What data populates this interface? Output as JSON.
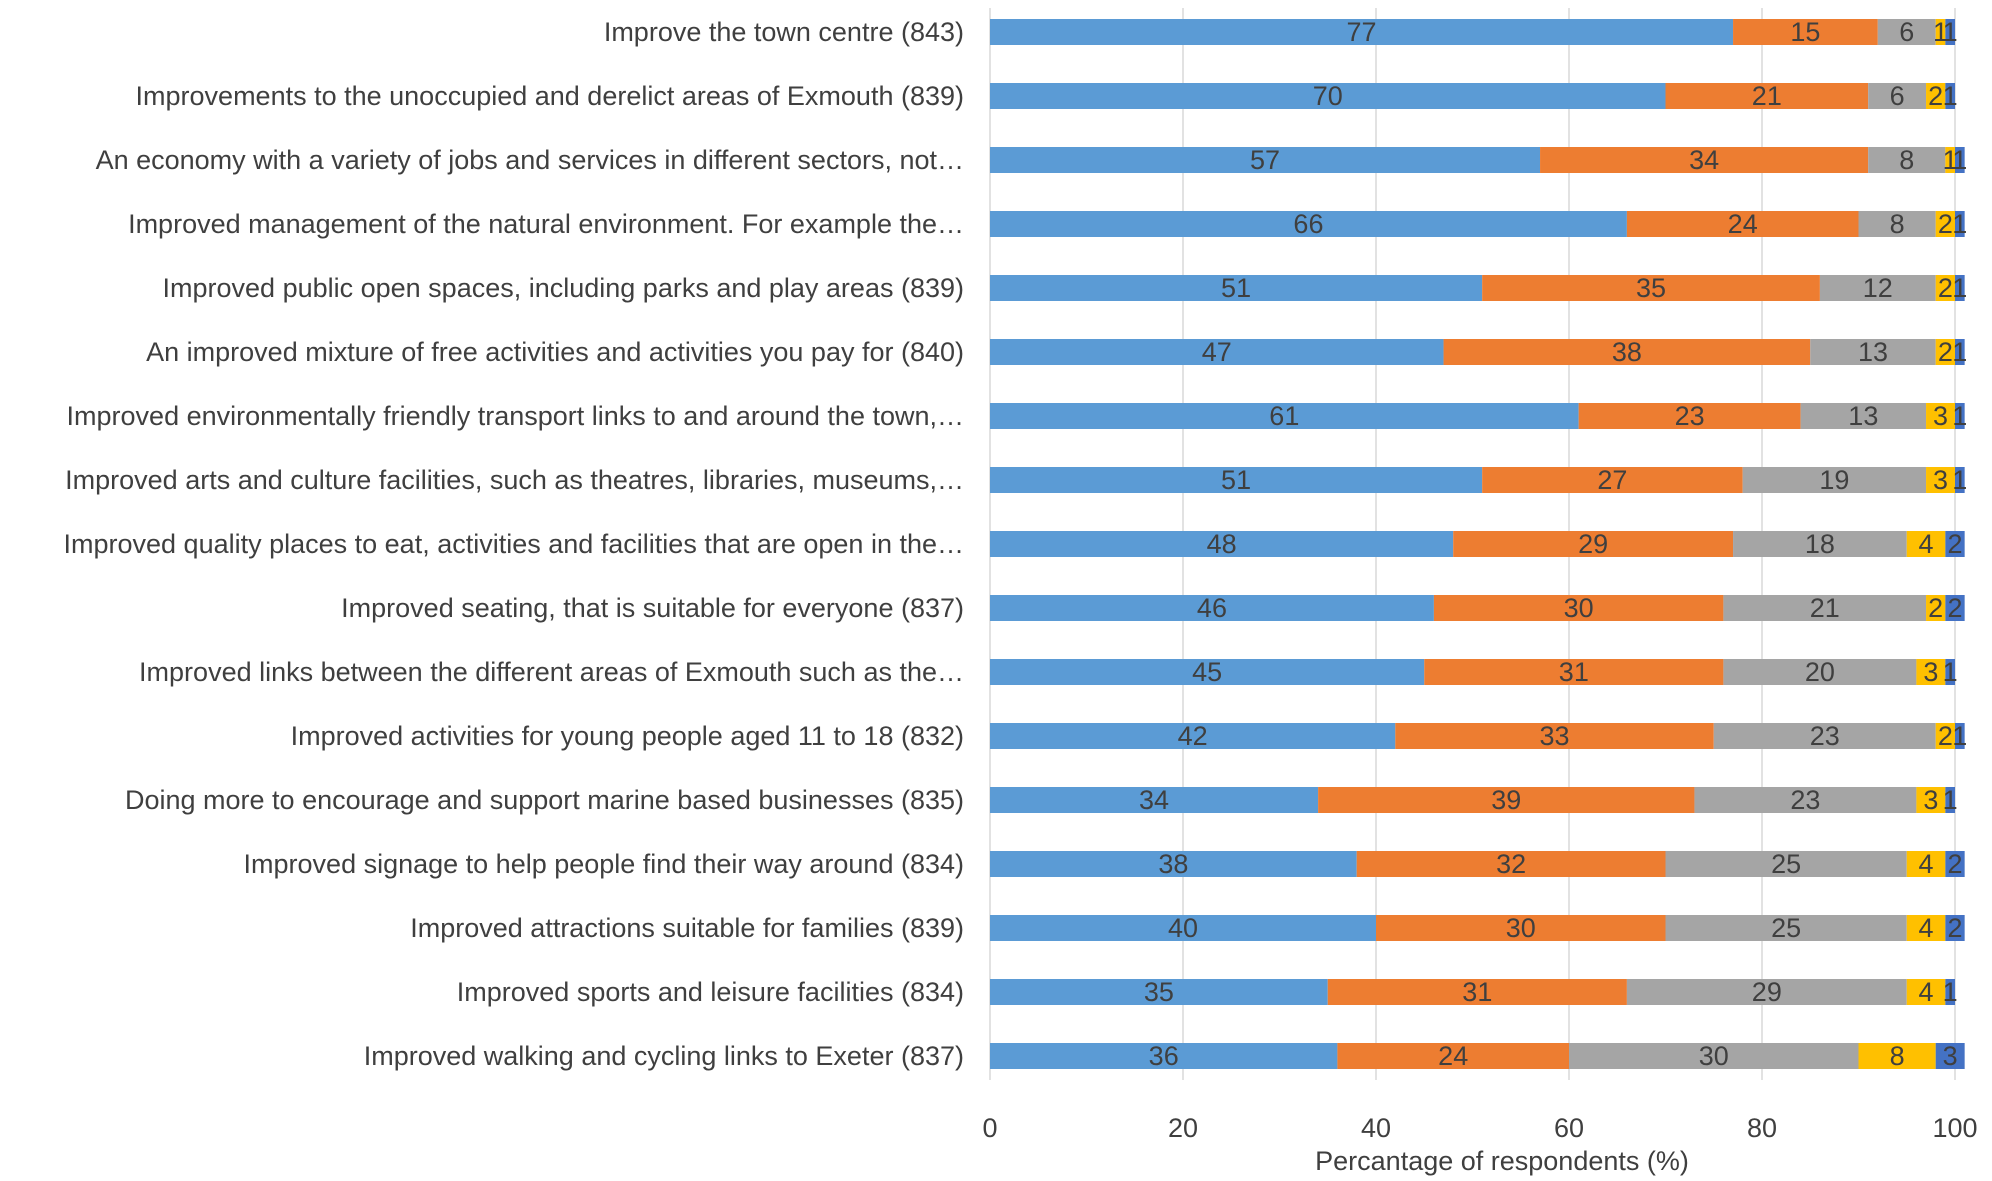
{
  "chart_data": {
    "type": "bar",
    "orientation": "horizontal",
    "stacked": true,
    "xlabel": "Percantage of respondents (%)",
    "xlim": [
      0,
      100
    ],
    "x_ticks": [
      "0",
      "20",
      "40",
      "60",
      "80",
      "100"
    ],
    "grid": true,
    "legend": "none",
    "categories": [
      "Improve the town centre (843)",
      "Improvements to the unoccupied and derelict areas of Exmouth (839)",
      "An economy with a variety of jobs and services in different sectors, not…",
      "Improved management of the natural environment. For example the…",
      "Improved public open spaces, including parks and play areas (839)",
      "An improved mixture of free activities and activities you pay for (840)",
      "Improved environmentally friendly transport links to and around the town,…",
      "Improved arts and culture facilities, such as theatres, libraries, museums,…",
      "Improved quality places to eat, activities and facilities that are open in the…",
      "Improved seating, that is suitable for everyone (837)",
      "Improved links between the different areas of Exmouth such as the…",
      "Improved activities for young people aged 11 to 18 (832)",
      "Doing more to encourage and support marine based businesses (835)",
      "Improved signage to help people find their way around (834)",
      "Improved attractions suitable for families  (839)",
      "Improved sports and leisure facilities (834)",
      "Improved walking and cycling links to Exeter (837)"
    ],
    "series": [
      {
        "color": "#5b9bd5",
        "values": [
          77,
          70,
          57,
          66,
          51,
          47,
          61,
          51,
          48,
          46,
          45,
          42,
          34,
          38,
          40,
          35,
          36
        ]
      },
      {
        "color": "#ed7d31",
        "values": [
          15,
          21,
          34,
          24,
          35,
          38,
          23,
          27,
          29,
          30,
          31,
          33,
          39,
          32,
          30,
          31,
          24
        ]
      },
      {
        "color": "#a5a5a5",
        "values": [
          6,
          6,
          8,
          8,
          12,
          13,
          13,
          19,
          18,
          21,
          20,
          23,
          23,
          25,
          25,
          29,
          30
        ]
      },
      {
        "color": "#ffc000",
        "values": [
          1,
          2,
          1,
          2,
          2,
          2,
          3,
          3,
          4,
          2,
          3,
          2,
          3,
          4,
          4,
          4,
          8
        ]
      },
      {
        "color": "#4472c4",
        "values": [
          1,
          1,
          1,
          1,
          1,
          1,
          1,
          1,
          2,
          2,
          1,
          1,
          1,
          2,
          2,
          1,
          3
        ]
      }
    ]
  }
}
